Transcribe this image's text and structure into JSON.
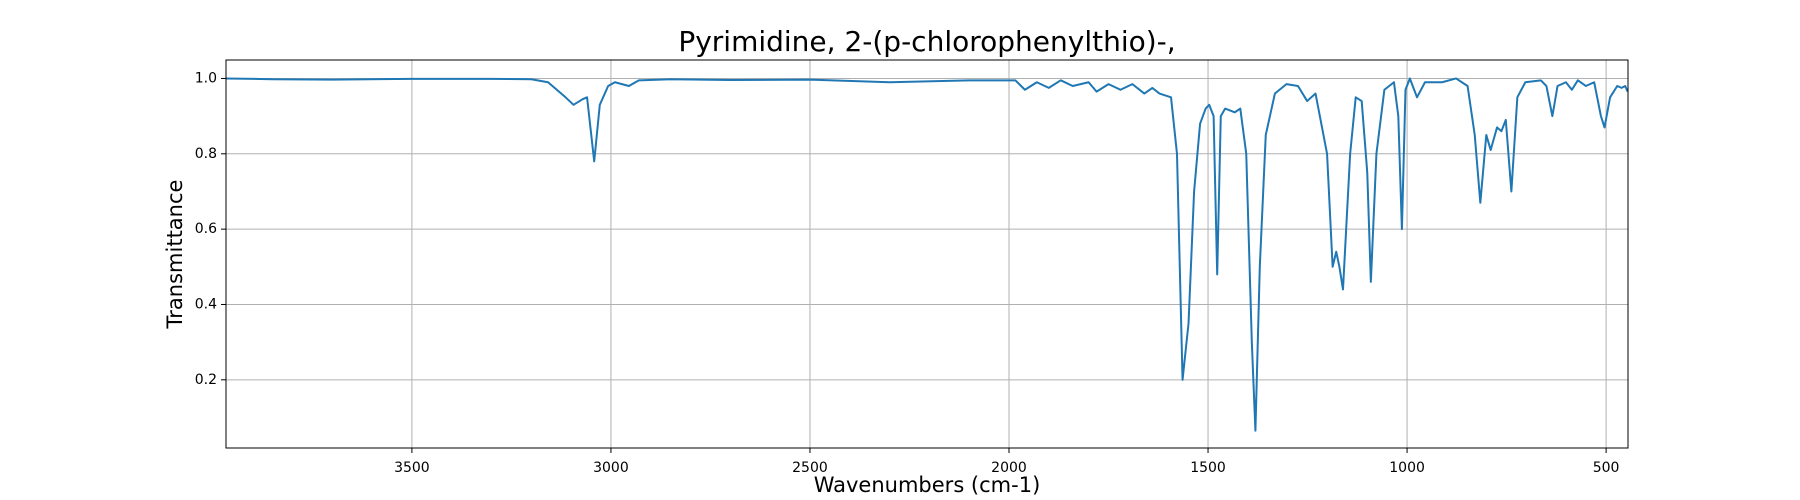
{
  "chart_data": {
    "type": "line",
    "title": "Pyrimidine, 2-(p-chlorophenylthio)-,",
    "x_label": "Wavenumbers (cm-1)",
    "y_label": "Transmittance",
    "color": "#1f77b4",
    "grid": true,
    "xlim": [
      3967,
      445
    ],
    "ylim": [
      0.019,
      1.049
    ],
    "xticks": [
      3500,
      3000,
      2500,
      2000,
      1500,
      1000,
      500
    ],
    "yticks": [
      0.2,
      0.4,
      0.6,
      0.8,
      {
        "value": 1,
        "label": "1.0"
      }
    ],
    "x": [
      3967,
      3850,
      3700,
      3500,
      3300,
      3200,
      3158,
      3114,
      3094,
      3071,
      3060,
      3042,
      3028,
      3007,
      2990,
      2955,
      2930,
      2850,
      2700,
      2500,
      2300,
      2100,
      1984,
      1960,
      1930,
      1900,
      1870,
      1840,
      1800,
      1780,
      1750,
      1720,
      1690,
      1660,
      1640,
      1622,
      1593,
      1578,
      1564,
      1549,
      1535,
      1520,
      1506,
      1497,
      1486,
      1477,
      1468,
      1457,
      1433,
      1419,
      1404,
      1390,
      1381,
      1370,
      1355,
      1332,
      1303,
      1274,
      1251,
      1230,
      1201,
      1187,
      1178,
      1170,
      1161,
      1143,
      1129,
      1114,
      1100,
      1091,
      1077,
      1057,
      1033,
      1022,
      1013,
      1004,
      993,
      975,
      955,
      912,
      877,
      848,
      830,
      816,
      801,
      790,
      774,
      763,
      752,
      738,
      723,
      703,
      664,
      650,
      635,
      622,
      601,
      586,
      571,
      551,
      530,
      513,
      504,
      490,
      472,
      461,
      452,
      446
    ],
    "values": [
      1.0,
      0.998,
      0.997,
      0.999,
      0.999,
      0.998,
      0.99,
      0.95,
      0.93,
      0.945,
      0.95,
      0.78,
      0.93,
      0.98,
      0.99,
      0.98,
      0.995,
      0.998,
      0.996,
      0.997,
      0.99,
      0.995,
      0.995,
      0.97,
      0.99,
      0.975,
      0.995,
      0.98,
      0.99,
      0.965,
      0.985,
      0.97,
      0.985,
      0.96,
      0.975,
      0.96,
      0.95,
      0.8,
      0.2,
      0.35,
      0.7,
      0.88,
      0.92,
      0.93,
      0.9,
      0.48,
      0.9,
      0.92,
      0.91,
      0.92,
      0.8,
      0.3,
      0.065,
      0.5,
      0.85,
      0.96,
      0.985,
      0.98,
      0.94,
      0.96,
      0.8,
      0.5,
      0.54,
      0.5,
      0.44,
      0.8,
      0.95,
      0.94,
      0.75,
      0.46,
      0.8,
      0.97,
      0.99,
      0.9,
      0.6,
      0.97,
      1.0,
      0.95,
      0.99,
      0.99,
      1.0,
      0.98,
      0.85,
      0.67,
      0.85,
      0.81,
      0.87,
      0.86,
      0.89,
      0.7,
      0.95,
      0.99,
      0.995,
      0.98,
      0.9,
      0.98,
      0.99,
      0.97,
      0.995,
      0.98,
      0.99,
      0.9,
      0.87,
      0.95,
      0.98,
      0.975,
      0.98,
      0.965
    ]
  }
}
